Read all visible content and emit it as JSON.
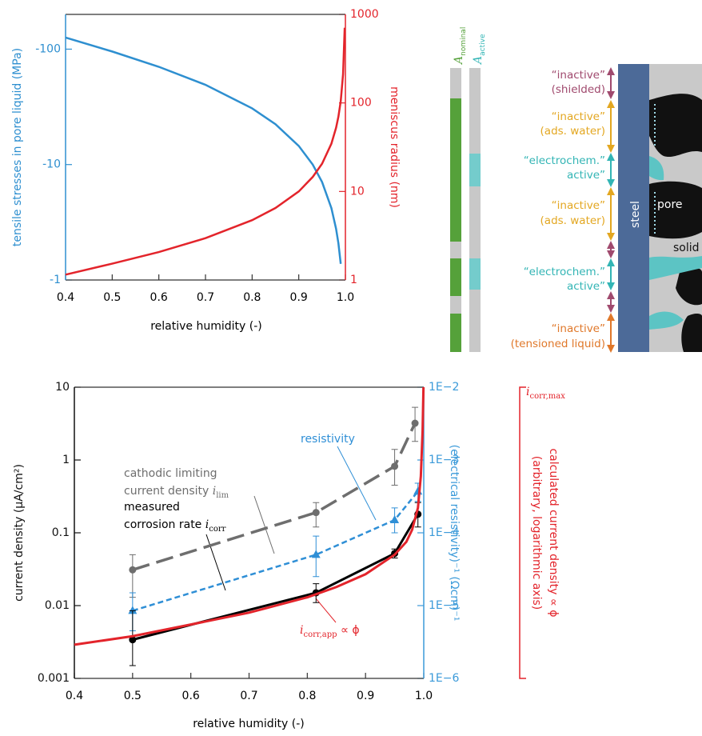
{
  "chart_data": [
    {
      "type": "line",
      "x_label": "relative humidity (-)",
      "y_label": "tensile stresses in pore liquid (MPa)",
      "y2_label": "meniscus radius (nm)",
      "yscale": "log",
      "y2scale": "log",
      "ycolor": "#2e8fd0",
      "y2color": "#e3242b",
      "x": [
        0.4,
        0.5,
        0.6,
        0.7,
        0.8,
        0.85,
        0.9,
        0.93,
        0.95,
        0.97,
        0.98,
        0.985,
        0.99,
        0.995,
        0.9985
      ],
      "xlim": [
        0.4,
        1.0
      ],
      "xticks": [
        0.4,
        0.5,
        0.6,
        0.7,
        0.8,
        0.9,
        {
          "value": 1.0,
          "label": "1.0"
        }
      ],
      "ylim": [
        -1,
        -200
      ],
      "yticks": [
        -1,
        -10,
        -100
      ],
      "y2lim": [
        1,
        1000
      ],
      "y2ticks": [
        1,
        10,
        100,
        1000
      ],
      "series": [
        {
          "color": "#2e8fd0",
          "values": [
            -126.1,
            -95.4,
            -70.3,
            -49.1,
            -30.7,
            -22.4,
            -14.5,
            -9.99,
            -7.06,
            -4.19,
            -2.78,
            -2.08,
            -1.38,
            null,
            null
          ]
        },
        {
          "color": "#e3242b",
          "axis": "y2",
          "values": [
            1.15,
            1.53,
            2.07,
            2.97,
            4.74,
            6.5,
            10,
            14.6,
            20.6,
            34.7,
            52.4,
            70,
            105,
            211,
            706
          ]
        }
      ]
    },
    {
      "type": "line",
      "x_label": "relative humidity (-)",
      "y_label": "current density (µA/cm²)",
      "y2_label": "(electrical resistivity)⁻¹  (Ωcm)⁻¹",
      "yscale": "log",
      "y2scale": "log",
      "ycolor": "#111111",
      "y2color": "#3b9ad9",
      "xlim": [
        0.4,
        1.0
      ],
      "xticks": [
        0.4,
        0.5,
        0.6,
        0.7,
        0.8,
        0.9,
        {
          "value": 1.0,
          "label": "1.0"
        }
      ],
      "ylim": [
        0.001,
        10
      ],
      "yticks": [
        0.001,
        0.01,
        0.1,
        1,
        10
      ],
      "y2lim": [
        1e-06,
        0.01
      ],
      "y2ticks": [
        {
          "value": 1e-06,
          "label": "1E−6"
        },
        {
          "value": 1e-05,
          "label": "1E−5"
        },
        {
          "value": 0.0001,
          "label": "1E−4"
        },
        {
          "value": 0.001,
          "label": "1E−3"
        },
        {
          "value": 0.01,
          "label": "1E−2"
        }
      ],
      "series": [
        {
          "color": "#6e6e6e",
          "line_style": "long-dash",
          "marker": "circle",
          "x": [
            0.5,
            0.815,
            0.95,
            0.985
          ],
          "values": [
            0.031,
            0.19,
            0.82,
            3.2
          ],
          "err_low": [
            0.013,
            0.12,
            0.45,
            1.8
          ],
          "err_high": [
            0.05,
            0.26,
            1.4,
            5.3
          ]
        },
        {
          "color": "#2f8fd6",
          "line_style": "dash",
          "marker": "triangle",
          "axis": "y2",
          "x": [
            0.5,
            0.815,
            0.95,
            0.99
          ],
          "values": [
            8.5e-06,
            5e-05,
            0.00015,
            0.00037
          ],
          "err_low": [
            4.5e-06,
            2.5e-05,
            0.0001,
            0.00027
          ],
          "err_high": [
            1.5e-05,
            9e-05,
            0.00022,
            0.00048
          ]
        },
        {
          "color": "#000000",
          "line_style": "solid",
          "marker": "circle",
          "x": [
            0.5,
            0.815,
            0.95,
            0.99
          ],
          "values": [
            0.0034,
            0.015,
            0.052,
            0.18
          ],
          "err_low": [
            0.0015,
            0.011,
            0.045,
            0.12
          ],
          "err_high": [
            0.0085,
            0.02,
            0.06,
            0.26
          ]
        },
        {
          "color": "#e3242b",
          "line_style": "solid",
          "x": [
            0.4,
            0.5,
            0.6,
            0.7,
            0.8,
            0.85,
            0.9,
            0.95,
            0.97,
            0.98,
            0.99,
            0.995,
            0.998,
            0.9995
          ],
          "values": [
            0.0029,
            0.0038,
            0.0055,
            0.008,
            0.013,
            0.018,
            0.027,
            0.05,
            0.075,
            0.11,
            0.22,
            0.6,
            2.5,
            10
          ]
        }
      ],
      "annotations": [
        {
          "before": "cathodic limiting",
          "color": "#6e6e6e"
        },
        {
          "before": "current density ",
          "var": "i",
          "sub": "lim",
          "color": "#6e6e6e"
        },
        {
          "before": "resistivity",
          "color": "#2f8fd6"
        },
        {
          "before": "measured",
          "color": "#000000"
        },
        {
          "before": "corrosion rate ",
          "var": "i",
          "sub": "corr",
          "color": "#000000"
        },
        {
          "var": "i",
          "sub": "corr,app",
          "after": " ∝ ϕ",
          "color": "#e3242b"
        },
        {
          "var": "i",
          "sub": "corr,max",
          "color": "#e3242b"
        },
        {
          "before": "calculated current density ∝ ϕ",
          "color": "#e3242b"
        },
        {
          "before": "(arbitrary, logarithmic axis)",
          "color": "#e3242b"
        }
      ]
    }
  ],
  "diagram": {
    "column_labels": [
      {
        "main": "A",
        "sub": "nominal"
      },
      {
        "main": "A",
        "sub": "active"
      }
    ],
    "labels": [
      [
        "“inactive”",
        "(shielded)"
      ],
      [
        "“inactive”",
        "(ads. water)"
      ],
      [
        "“electrochem.”",
        "active”"
      ],
      [
        "“inactive”",
        "(ads. water)"
      ],
      [
        "“electrochem.”",
        "active”"
      ],
      [
        "“inactive”",
        "(tensioned liquid)"
      ]
    ],
    "steel": "steel",
    "pore": "pore",
    "solid": "solid"
  }
}
